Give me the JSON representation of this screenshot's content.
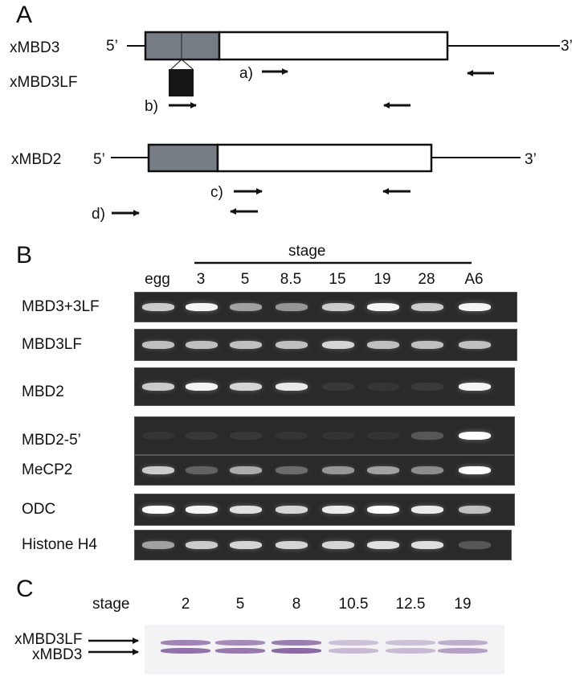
{
  "panel_a": {
    "letter": "A",
    "xmbd3": {
      "name": "xMBD3",
      "five": "5’",
      "three": "3’"
    },
    "xmbd3lf": {
      "name": "xMBD3LF"
    },
    "xmbd2": {
      "name": "xMBD2",
      "five": "5’",
      "three": "3’"
    },
    "primers": [
      "a)",
      "b)",
      "c)",
      "d)"
    ]
  },
  "panel_b": {
    "letter": "B",
    "stage_label": "stage",
    "lanes": [
      "egg",
      "3",
      "5",
      "8.5",
      "15",
      "19",
      "28",
      "A6"
    ],
    "rows": [
      {
        "label": "MBD3+3LF",
        "intensity": [
          0.75,
          0.95,
          0.55,
          0.5,
          0.75,
          0.95,
          0.75,
          0.95
        ]
      },
      {
        "label": "MBD3LF",
        "intensity": [
          0.7,
          0.7,
          0.7,
          0.7,
          0.8,
          0.7,
          0.7,
          0.7
        ]
      },
      {
        "label": "MBD2",
        "intensity": [
          0.75,
          0.95,
          0.8,
          0.9,
          0.05,
          0.04,
          0.06,
          0.95
        ]
      },
      {
        "label": "MBD2-5’",
        "intensity": [
          0.04,
          0.05,
          0.05,
          0.04,
          0.03,
          0.03,
          0.2,
          1.0
        ]
      },
      {
        "label": "MeCP2",
        "intensity": [
          0.75,
          0.25,
          0.6,
          0.3,
          0.5,
          0.55,
          0.45,
          1.0
        ]
      },
      {
        "label": "ODC",
        "intensity": [
          1.0,
          0.95,
          0.85,
          0.8,
          0.9,
          1.0,
          0.9,
          0.7
        ]
      },
      {
        "label": "Histone H4",
        "intensity": [
          0.55,
          0.75,
          0.8,
          0.8,
          0.8,
          0.85,
          0.85,
          0.2
        ]
      }
    ]
  },
  "panel_c": {
    "letter": "C",
    "stage_label": "stage",
    "lanes": [
      "2",
      "5",
      "8",
      "10.5",
      "12.5",
      "19"
    ],
    "band_labels": [
      "xMBD3LF",
      "xMBD3"
    ],
    "intensity": [
      0.8,
      0.75,
      0.85,
      0.35,
      0.35,
      0.5
    ]
  }
}
